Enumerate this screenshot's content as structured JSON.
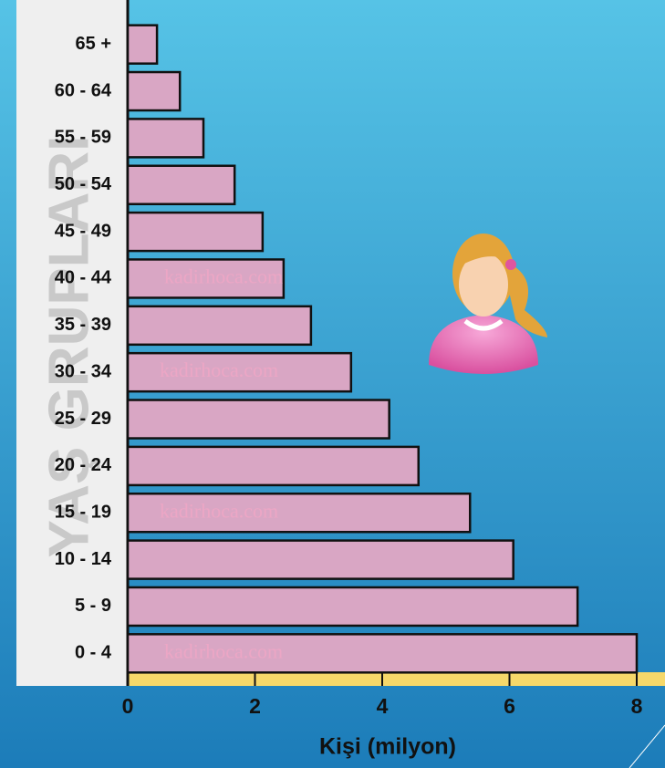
{
  "chart_data": {
    "type": "bar",
    "orientation": "horizontal",
    "xlabel": "Kişi (milyon)",
    "ylabel": "YAŞ GRUPLARI",
    "watermark": "kadirhoca.com",
    "categories": [
      "65 +",
      "60 - 64",
      "55 - 59",
      "50 - 54",
      "45 - 49",
      "40 - 44",
      "35 - 39",
      "30 - 34",
      "25 - 29",
      "20 - 24",
      "15 - 19",
      "10 - 14",
      "5 - 9",
      "0 - 4"
    ],
    "values": [
      0.46,
      0.82,
      1.19,
      1.68,
      2.12,
      2.45,
      2.88,
      3.51,
      4.11,
      4.57,
      5.38,
      6.06,
      7.07,
      8.0
    ],
    "color": "#d9a6c4",
    "xlim": [
      0,
      8
    ],
    "xticks": [
      0,
      2,
      4,
      6,
      8
    ]
  }
}
